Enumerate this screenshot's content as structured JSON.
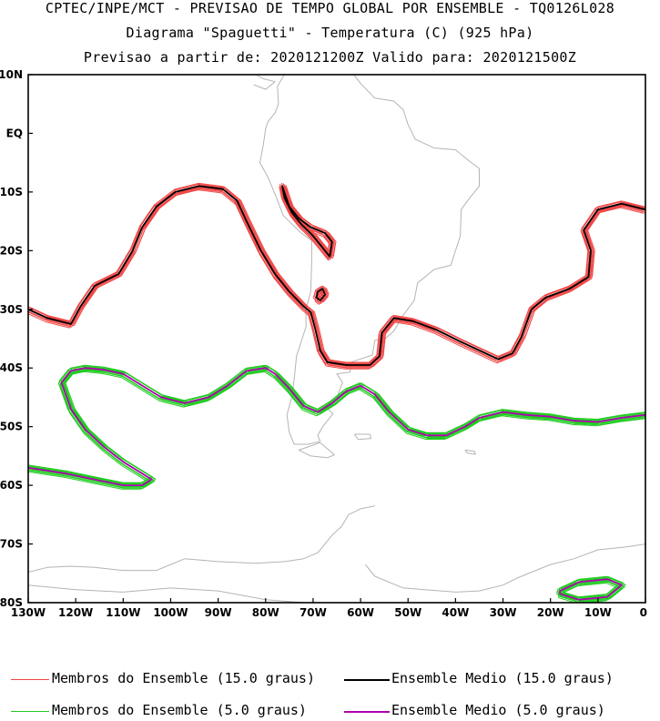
{
  "titles": {
    "line1": "CPTEC/INPE/MCT - PREVISAO DE TEMPO GLOBAL POR ENSEMBLE - TQ0126L028",
    "line2": "Diagrama \"Spaguetti\" - Temperatura (C) (925 hPa)",
    "line3": "Previsao a partir de: 2020121200Z  Valido para: 2020121500Z"
  },
  "map": {
    "lon_range": [
      -130,
      0
    ],
    "lat_range": [
      -80,
      10
    ],
    "lat_ticks": [
      {
        "value": 10,
        "label": "10N"
      },
      {
        "value": 0,
        "label": "EQ"
      },
      {
        "value": -10,
        "label": "10S"
      },
      {
        "value": -20,
        "label": "20S"
      },
      {
        "value": -30,
        "label": "30S"
      },
      {
        "value": -40,
        "label": "40S"
      },
      {
        "value": -50,
        "label": "50S"
      },
      {
        "value": -60,
        "label": "60S"
      },
      {
        "value": -70,
        "label": "70S"
      },
      {
        "value": -80,
        "label": "80S"
      }
    ],
    "lon_ticks": [
      {
        "value": -130,
        "label": "130W"
      },
      {
        "value": -120,
        "label": "120W"
      },
      {
        "value": -110,
        "label": "110W"
      },
      {
        "value": -100,
        "label": "100W"
      },
      {
        "value": -90,
        "label": "90W"
      },
      {
        "value": -80,
        "label": "80W"
      },
      {
        "value": -70,
        "label": "70W"
      },
      {
        "value": -60,
        "label": "60W"
      },
      {
        "value": -50,
        "label": "50W"
      },
      {
        "value": -40,
        "label": "40W"
      },
      {
        "value": -30,
        "label": "30W"
      },
      {
        "value": -20,
        "label": "20W"
      },
      {
        "value": -10,
        "label": "10W"
      },
      {
        "value": 0,
        "label": "0"
      }
    ],
    "colors": {
      "member15": "#f04848",
      "mean15": "#000000",
      "member5": "#22cc22",
      "mean5": "#b000b0",
      "coast": "#b4b4b4"
    },
    "contour_15_mean": [
      [
        -130,
        -30
      ],
      [
        -126,
        -31.5
      ],
      [
        -121,
        -32.5
      ],
      [
        -119,
        -29.5
      ],
      [
        -116,
        -26
      ],
      [
        -111,
        -24
      ],
      [
        -108,
        -20
      ],
      [
        -106,
        -16
      ],
      [
        -103,
        -12.5
      ],
      [
        -99,
        -10
      ],
      [
        -94,
        -9
      ],
      [
        -89,
        -9.5
      ],
      [
        -86,
        -11.5
      ],
      [
        -84,
        -15
      ],
      [
        -81,
        -20
      ],
      [
        -78,
        -24
      ],
      [
        -75,
        -27
      ],
      [
        -72,
        -29.5
      ],
      [
        -70.5,
        -30.5
      ],
      [
        -69.5,
        -33.5
      ],
      [
        -68.5,
        -37
      ],
      [
        -67,
        -39
      ],
      [
        -63,
        -39.5
      ],
      [
        -58,
        -39.5
      ],
      [
        -56,
        -38
      ],
      [
        -55.5,
        -34
      ],
      [
        -53,
        -31.5
      ],
      [
        -49,
        -32
      ],
      [
        -44,
        -33.5
      ],
      [
        -39,
        -35.5
      ],
      [
        -35,
        -37
      ],
      [
        -31,
        -38.5
      ],
      [
        -28,
        -37.5
      ],
      [
        -26,
        -34.5
      ],
      [
        -24,
        -30
      ],
      [
        -21,
        -28
      ],
      [
        -16,
        -26.5
      ],
      [
        -12,
        -24.5
      ],
      [
        -11.5,
        -20
      ],
      [
        -13,
        -16.5
      ],
      [
        -10,
        -13
      ],
      [
        -5,
        -12
      ],
      [
        0,
        -13
      ]
    ],
    "contour_15_peru": [
      [
        -76.5,
        -9
      ],
      [
        -75,
        -12.5
      ],
      [
        -73,
        -14.5
      ],
      [
        -70.5,
        -16
      ],
      [
        -67.5,
        -17
      ],
      [
        -66,
        -18.5
      ],
      [
        -66.5,
        -21
      ],
      [
        -68,
        -19.5
      ],
      [
        -70,
        -17.5
      ],
      [
        -72.5,
        -15.5
      ],
      [
        -74.5,
        -13.5
      ],
      [
        -76,
        -11
      ],
      [
        -76.5,
        -9
      ]
    ],
    "contour_15_blob": [
      [
        -69,
        -27
      ],
      [
        -68,
        -26.5
      ],
      [
        -67.5,
        -27.5
      ],
      [
        -68.5,
        -28.5
      ],
      [
        -69.3,
        -28
      ],
      [
        -69,
        -27
      ]
    ],
    "contour_5_mean": [
      [
        0,
        -48
      ],
      [
        -5,
        -48.5
      ],
      [
        -10,
        -49.2
      ],
      [
        -15,
        -49
      ],
      [
        -20,
        -48.3
      ],
      [
        -25,
        -48
      ],
      [
        -30,
        -47.5
      ],
      [
        -35,
        -48.5
      ],
      [
        -38,
        -50
      ],
      [
        -42,
        -51.5
      ],
      [
        -46,
        -51.5
      ],
      [
        -50,
        -50.5
      ],
      [
        -54,
        -47.5
      ],
      [
        -57,
        -44.5
      ],
      [
        -60,
        -43
      ],
      [
        -63,
        -44
      ],
      [
        -66,
        -46
      ],
      [
        -69,
        -47.5
      ],
      [
        -72,
        -46.5
      ],
      [
        -75,
        -43.5
      ],
      [
        -78,
        -41
      ],
      [
        -80,
        -40
      ],
      [
        -84,
        -40.5
      ],
      [
        -88,
        -43
      ],
      [
        -92,
        -45
      ],
      [
        -97,
        -46
      ],
      [
        -102,
        -45
      ],
      [
        -106,
        -43
      ],
      [
        -110,
        -41
      ],
      [
        -114,
        -40.3
      ],
      [
        -118,
        -40
      ],
      [
        -121,
        -40.5
      ],
      [
        -123,
        -42.5
      ],
      [
        -121,
        -47
      ],
      [
        -118,
        -50.5
      ],
      [
        -114,
        -53.5
      ],
      [
        -110,
        -56
      ],
      [
        -106,
        -58
      ],
      [
        -104,
        -59
      ],
      [
        -106,
        -60
      ],
      [
        -110,
        -60
      ],
      [
        -116,
        -59
      ],
      [
        -122,
        -58
      ],
      [
        -126,
        -57.5
      ],
      [
        -130,
        -57
      ]
    ],
    "contour_5_antarctic": [
      [
        -18,
        -78
      ],
      [
        -14,
        -76.5
      ],
      [
        -8,
        -76
      ],
      [
        -5,
        -77
      ],
      [
        -8,
        -79
      ],
      [
        -14,
        -79.5
      ],
      [
        -18,
        -78.5
      ],
      [
        -18,
        -78
      ]
    ],
    "land": [
      {
        "name": "south-america",
        "points": [
          [
            -77.5,
            8
          ],
          [
            -75.5,
            10.8
          ],
          [
            -72,
            12.2
          ],
          [
            -67,
            10.6
          ],
          [
            -62,
            10.6
          ],
          [
            -60,
            8.5
          ],
          [
            -57,
            6
          ],
          [
            -53,
            5.5
          ],
          [
            -51,
            4
          ],
          [
            -50,
            1.5
          ],
          [
            -48.5,
            -1
          ],
          [
            -44.5,
            -2.5
          ],
          [
            -40,
            -2.8
          ],
          [
            -37,
            -4.8
          ],
          [
            -35,
            -6
          ],
          [
            -35,
            -9
          ],
          [
            -37,
            -11
          ],
          [
            -38.8,
            -13
          ],
          [
            -39,
            -17.5
          ],
          [
            -40,
            -20
          ],
          [
            -41,
            -22.5
          ],
          [
            -44.5,
            -23.2
          ],
          [
            -48,
            -25.5
          ],
          [
            -48.7,
            -28.5
          ],
          [
            -51,
            -31
          ],
          [
            -53,
            -33.7
          ],
          [
            -54.8,
            -35
          ],
          [
            -57,
            -35.3
          ],
          [
            -57.5,
            -37.8
          ],
          [
            -62,
            -39
          ],
          [
            -62.2,
            -40.7
          ],
          [
            -65,
            -41
          ],
          [
            -63.8,
            -42.5
          ],
          [
            -65,
            -45
          ],
          [
            -67.5,
            -46.5
          ],
          [
            -65.8,
            -47.8
          ],
          [
            -68,
            -50
          ],
          [
            -69,
            -51.5
          ],
          [
            -68.5,
            -52.5
          ],
          [
            -71,
            -53
          ],
          [
            -74,
            -53
          ],
          [
            -75,
            -51
          ],
          [
            -75.5,
            -48
          ],
          [
            -74.5,
            -45
          ],
          [
            -74,
            -42
          ],
          [
            -73.5,
            -38
          ],
          [
            -71.5,
            -33
          ],
          [
            -71.5,
            -30
          ],
          [
            -70.5,
            -27
          ],
          [
            -70.3,
            -22
          ],
          [
            -70.3,
            -18.3
          ],
          [
            -72.5,
            -17
          ],
          [
            -76.3,
            -14
          ],
          [
            -77.7,
            -11
          ],
          [
            -79.5,
            -7.5
          ],
          [
            -81.2,
            -5
          ],
          [
            -80.5,
            -2
          ],
          [
            -80,
            0.8
          ],
          [
            -79.5,
            2
          ],
          [
            -78,
            3.5
          ],
          [
            -77.3,
            5
          ],
          [
            -77.5,
            8
          ]
        ]
      },
      {
        "name": "central-america",
        "points": [
          [
            -82.5,
            8.3
          ],
          [
            -80,
            7.5
          ],
          [
            -78,
            8.8
          ],
          [
            -80.5,
            9.3
          ],
          [
            -83.5,
            10.7
          ],
          [
            -84,
            12
          ],
          [
            -86,
            13
          ],
          [
            -87.5,
            13.2
          ],
          [
            -91,
            13.9
          ],
          [
            -92,
            15
          ],
          [
            -91,
            16
          ],
          [
            -90.5,
            17
          ]
        ]
      },
      {
        "name": "tierra-del-fuego",
        "points": [
          [
            -68.5,
            -52.7
          ],
          [
            -65.5,
            -54.8
          ],
          [
            -67,
            -55.3
          ],
          [
            -70.5,
            -55
          ],
          [
            -73,
            -54
          ],
          [
            -70.5,
            -53.3
          ],
          [
            -68.5,
            -52.7
          ]
        ]
      },
      {
        "name": "falklands",
        "points": [
          [
            -61.3,
            -51.3
          ],
          [
            -58,
            -51.3
          ],
          [
            -57.8,
            -52
          ],
          [
            -60.5,
            -52.2
          ],
          [
            -61.3,
            -51.3
          ]
        ]
      },
      {
        "name": "antarctic-peninsula",
        "points": [
          [
            -57,
            -63.5
          ],
          [
            -60,
            -64
          ],
          [
            -62.5,
            -65
          ],
          [
            -64,
            -67
          ],
          [
            -66,
            -68.5
          ],
          [
            -67.5,
            -70
          ],
          [
            -69,
            -71.5
          ],
          [
            -72,
            -72.5
          ],
          [
            -76,
            -73
          ],
          [
            -82,
            -73.3
          ],
          [
            -90,
            -73
          ],
          [
            -97,
            -72.5
          ],
          [
            -100,
            -73.5
          ],
          [
            -103,
            -74.5
          ],
          [
            -110,
            -74.5
          ],
          [
            -116,
            -74
          ],
          [
            -121,
            -73.8
          ],
          [
            -126,
            -74
          ],
          [
            -130,
            -74.8
          ]
        ]
      },
      {
        "name": "weddell-coast",
        "points": [
          [
            -59,
            -73.5
          ],
          [
            -57,
            -75.5
          ],
          [
            -51,
            -77.5
          ],
          [
            -40,
            -78.2
          ],
          [
            -35,
            -78
          ],
          [
            -30,
            -77
          ],
          [
            -27,
            -75.8
          ],
          [
            -20,
            -73.5
          ],
          [
            -15,
            -72.5
          ],
          [
            -10,
            -71
          ],
          [
            -4,
            -70.5
          ],
          [
            0,
            -70
          ]
        ]
      },
      {
        "name": "ross-coast",
        "points": [
          [
            -130,
            -77
          ],
          [
            -120,
            -77.8
          ],
          [
            -110,
            -78.2
          ],
          [
            -100,
            -77.5
          ],
          [
            -90,
            -78
          ],
          [
            -80,
            -79.5
          ],
          [
            -72,
            -80
          ]
        ]
      },
      {
        "name": "south-georgia",
        "points": [
          [
            -38,
            -54
          ],
          [
            -36,
            -54.2
          ],
          [
            -35.8,
            -54.7
          ],
          [
            -37.5,
            -54.5
          ],
          [
            -38,
            -54
          ]
        ]
      }
    ]
  },
  "legend": {
    "member15": "Membros do Ensemble (15.0 graus)",
    "mean15": "Ensemble Medio (15.0 graus)",
    "member5": "Membros do Ensemble (5.0 graus)",
    "mean5": "Ensemble Medio (5.0 graus)"
  }
}
